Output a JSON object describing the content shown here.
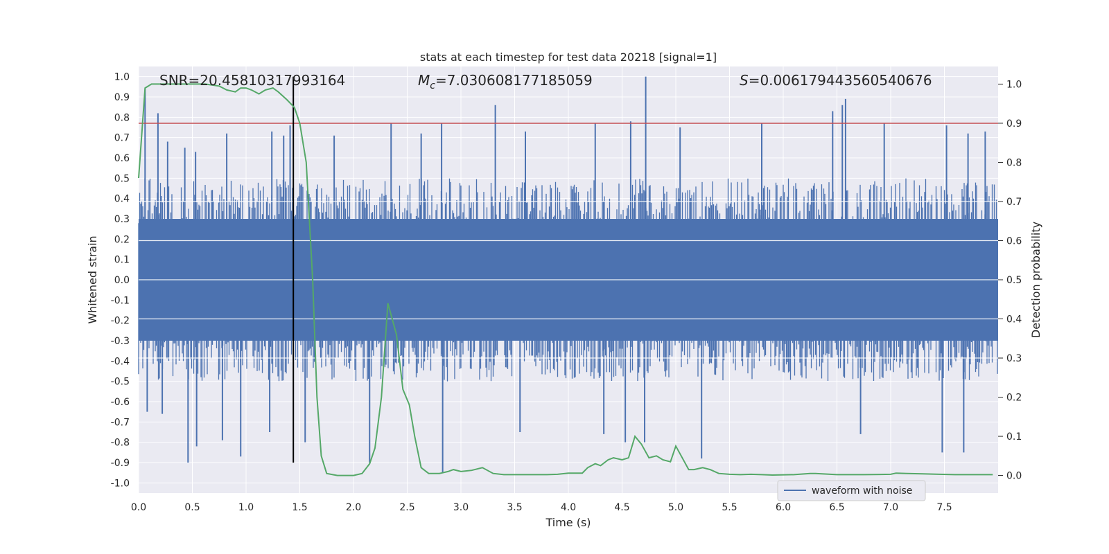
{
  "chart_data": {
    "type": "line",
    "title": "stats at each timestep for test data 20218 [signal=1]",
    "xlabel": "Time (s)",
    "ylabel_left": "Whitened strain",
    "ylabel_right": "Detection probability",
    "xlim": [
      0.0,
      8.0
    ],
    "ylim_left": [
      -1.05,
      1.05
    ],
    "ylim_right": [
      -0.045,
      1.045
    ],
    "x_ticks": [
      "0.0",
      "0.5",
      "1.0",
      "1.5",
      "2.0",
      "2.5",
      "3.0",
      "3.5",
      "4.0",
      "4.5",
      "5.0",
      "5.5",
      "6.0",
      "6.5",
      "7.0",
      "7.5"
    ],
    "y_ticks_left": [
      "1.0",
      "0.9",
      "0.8",
      "0.7",
      "0.6",
      "0.5",
      "0.4",
      "0.3",
      "0.2",
      "0.1",
      "0.0",
      "-0.1",
      "-0.2",
      "-0.3",
      "-0.4",
      "-0.5",
      "-0.6",
      "-0.7",
      "-0.8",
      "-0.9",
      "-1.0"
    ],
    "y_ticks_right": [
      "1.0",
      "0.9",
      "0.8",
      "0.7",
      "0.6",
      "0.5",
      "0.4",
      "0.3",
      "0.2",
      "0.1",
      "0.0"
    ],
    "annotations": {
      "snr": "SNR=20.45810317993164",
      "mc_symbol": "M",
      "mc_sub": "c",
      "mc_value": "=7.030608177185059",
      "s_symbol": "S",
      "s_value": "=0.006179443560540676"
    },
    "threshold": {
      "value": 0.9,
      "axis": "right",
      "color": "#c44e52"
    },
    "marker_time": 1.44,
    "grid": true,
    "legend": {
      "position": "lower-right",
      "entries": [
        "waveform with noise"
      ]
    },
    "colors": {
      "background": "#eaeaf2",
      "waveform": "#4c72b0",
      "probability": "#55a868",
      "threshold": "#c44e52",
      "marker": "#000000"
    },
    "series": [
      {
        "name": "waveform with noise",
        "axis": "left",
        "envelope": {
          "x": [
            0.0,
            8.0
          ],
          "core_max": 0.4,
          "core_min": -0.4,
          "spikes": [
            [
              0.06,
              0.94
            ],
            [
              0.18,
              0.82
            ],
            [
              0.27,
              0.68
            ],
            [
              0.43,
              0.65
            ],
            [
              0.53,
              0.63
            ],
            [
              0.82,
              0.72
            ],
            [
              1.24,
              0.73
            ],
            [
              1.35,
              0.71
            ],
            [
              1.41,
              0.76
            ],
            [
              1.82,
              0.71
            ],
            [
              2.35,
              0.77
            ],
            [
              2.63,
              0.72
            ],
            [
              2.82,
              0.77
            ],
            [
              3.32,
              0.86
            ],
            [
              3.6,
              0.73
            ],
            [
              4.25,
              0.77
            ],
            [
              4.58,
              0.78
            ],
            [
              4.72,
              1.0
            ],
            [
              5.04,
              0.75
            ],
            [
              5.8,
              0.77
            ],
            [
              6.46,
              0.83
            ],
            [
              6.55,
              0.86
            ],
            [
              6.58,
              0.89
            ],
            [
              6.94,
              0.77
            ],
            [
              7.52,
              0.76
            ],
            [
              7.72,
              0.72
            ],
            [
              7.88,
              0.73
            ],
            [
              0.08,
              -0.65
            ],
            [
              0.22,
              -0.66
            ],
            [
              0.46,
              -0.9
            ],
            [
              0.54,
              -0.82
            ],
            [
              0.78,
              -0.79
            ],
            [
              0.95,
              -0.87
            ],
            [
              1.22,
              -0.75
            ],
            [
              1.55,
              -0.8
            ],
            [
              2.15,
              -0.9
            ],
            [
              2.83,
              -0.95
            ],
            [
              3.55,
              -0.75
            ],
            [
              4.33,
              -0.76
            ],
            [
              4.53,
              -0.8
            ],
            [
              4.71,
              -0.8
            ],
            [
              5.24,
              -0.88
            ],
            [
              6.72,
              -0.76
            ],
            [
              7.48,
              -0.85
            ],
            [
              7.68,
              -0.85
            ]
          ]
        }
      },
      {
        "name": "",
        "axis": "right",
        "x": [
          0.0,
          0.06,
          0.12,
          0.25,
          0.5,
          0.62,
          0.75,
          0.82,
          0.9,
          0.95,
          1.0,
          1.05,
          1.12,
          1.18,
          1.25,
          1.3,
          1.38,
          1.45,
          1.5,
          1.56,
          1.62,
          1.66,
          1.7,
          1.75,
          1.85,
          2.0,
          2.08,
          2.15,
          2.2,
          2.26,
          2.32,
          2.4,
          2.46,
          2.52,
          2.57,
          2.63,
          2.7,
          2.8,
          2.88,
          2.93,
          3.0,
          3.1,
          3.2,
          3.3,
          3.4,
          3.6,
          3.8,
          3.9,
          4.0,
          4.13,
          4.18,
          4.25,
          4.3,
          4.37,
          4.42,
          4.5,
          4.56,
          4.62,
          4.68,
          4.75,
          4.82,
          4.88,
          4.95,
          5.0,
          5.05,
          5.12,
          5.17,
          5.25,
          5.32,
          5.4,
          5.5,
          5.6,
          5.7,
          5.8,
          5.9,
          6.1,
          6.25,
          6.3,
          6.5,
          6.75,
          7.0,
          7.05,
          7.15,
          7.3,
          7.45,
          7.6,
          7.75,
          7.95
        ],
        "y": [
          0.76,
          0.99,
          1.0,
          1.0,
          1.0,
          1.0,
          0.995,
          0.985,
          0.98,
          0.99,
          0.99,
          0.985,
          0.975,
          0.985,
          0.99,
          0.98,
          0.96,
          0.94,
          0.9,
          0.8,
          0.5,
          0.2,
          0.05,
          0.005,
          0.0,
          0.0,
          0.005,
          0.03,
          0.07,
          0.2,
          0.44,
          0.36,
          0.22,
          0.18,
          0.1,
          0.02,
          0.005,
          0.005,
          0.01,
          0.015,
          0.01,
          0.013,
          0.02,
          0.005,
          0.002,
          0.002,
          0.002,
          0.003,
          0.006,
          0.006,
          0.02,
          0.03,
          0.025,
          0.04,
          0.045,
          0.04,
          0.045,
          0.1,
          0.08,
          0.045,
          0.05,
          0.04,
          0.035,
          0.075,
          0.05,
          0.015,
          0.015,
          0.02,
          0.015,
          0.005,
          0.003,
          0.002,
          0.003,
          0.002,
          0.001,
          0.002,
          0.005,
          0.005,
          0.002,
          0.002,
          0.003,
          0.006,
          0.005,
          0.004,
          0.003,
          0.002,
          0.002,
          0.002
        ]
      }
    ]
  }
}
